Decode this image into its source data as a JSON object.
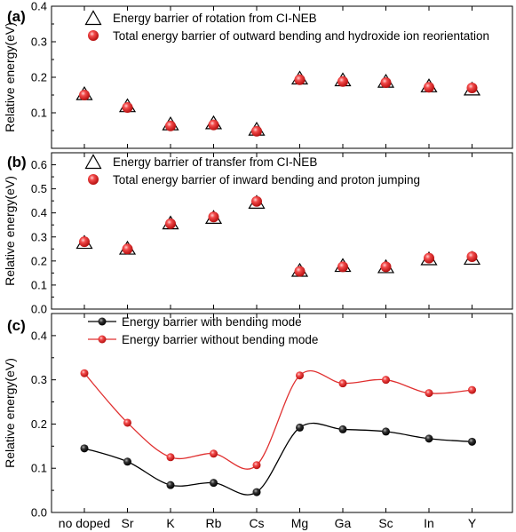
{
  "chart_data": [
    {
      "panel": "(a)",
      "type": "scatter",
      "ylabel": "Relative energy(eV)",
      "ylim": [
        0.0,
        0.4
      ],
      "yticks": [
        0.1,
        0.2,
        0.3,
        0.4
      ],
      "categories": [
        "no doped",
        "Sr",
        "K",
        "Rb",
        "Cs",
        "Mg",
        "Ga",
        "Sc",
        "In",
        "Y"
      ],
      "series": [
        {
          "name": "Energy barrier of rotation from CI-NEB",
          "marker": "triangle",
          "values": [
            0.153,
            0.119,
            0.068,
            0.071,
            0.053,
            0.197,
            0.192,
            0.188,
            0.175,
            0.166
          ]
        },
        {
          "name": "Total energy barrier of outward bending and hydroxide ion reorientation",
          "marker": "sphere",
          "color": "#e8202a",
          "values": [
            0.15,
            0.115,
            0.063,
            0.066,
            0.048,
            0.193,
            0.188,
            0.185,
            0.172,
            0.17
          ]
        }
      ]
    },
    {
      "panel": "(b)",
      "type": "scatter",
      "ylabel": "Relative energy(eV)",
      "ylim": [
        0.0,
        0.65
      ],
      "yticks": [
        0.0,
        0.1,
        0.2,
        0.3,
        0.4,
        0.5,
        0.6
      ],
      "categories": [
        "no doped",
        "Sr",
        "K",
        "Rb",
        "Cs",
        "Mg",
        "Ga",
        "Sc",
        "In",
        "Y"
      ],
      "series": [
        {
          "name": "Energy barrier of transfer from CI-NEB",
          "marker": "triangle",
          "values": [
            0.276,
            0.252,
            0.357,
            0.38,
            0.443,
            0.16,
            0.18,
            0.175,
            0.208,
            0.21
          ]
        },
        {
          "name": "Total energy barrier of inward bending and proton jumping",
          "marker": "sphere",
          "color": "#e8202a",
          "values": [
            0.28,
            0.25,
            0.355,
            0.383,
            0.448,
            0.157,
            0.176,
            0.176,
            0.212,
            0.218
          ]
        }
      ]
    },
    {
      "panel": "(c)",
      "type": "line",
      "ylabel": "Relative energy(eV)",
      "ylim": [
        0.0,
        0.45
      ],
      "yticks": [
        0.0,
        0.1,
        0.2,
        0.3,
        0.4
      ],
      "categories": [
        "no doped",
        "Sr",
        "K",
        "Rb",
        "Cs",
        "Mg",
        "Ga",
        "Sc",
        "In",
        "Y"
      ],
      "series": [
        {
          "name": "Energy barrier with bending mode",
          "color": "#000000",
          "values": [
            0.145,
            0.115,
            0.062,
            0.067,
            0.046,
            0.192,
            0.188,
            0.183,
            0.167,
            0.16
          ]
        },
        {
          "name": "Energy barrier without bending mode",
          "color": "#e03030",
          "values": [
            0.315,
            0.203,
            0.125,
            0.133,
            0.107,
            0.31,
            0.292,
            0.3,
            0.27,
            0.277
          ]
        }
      ]
    }
  ]
}
